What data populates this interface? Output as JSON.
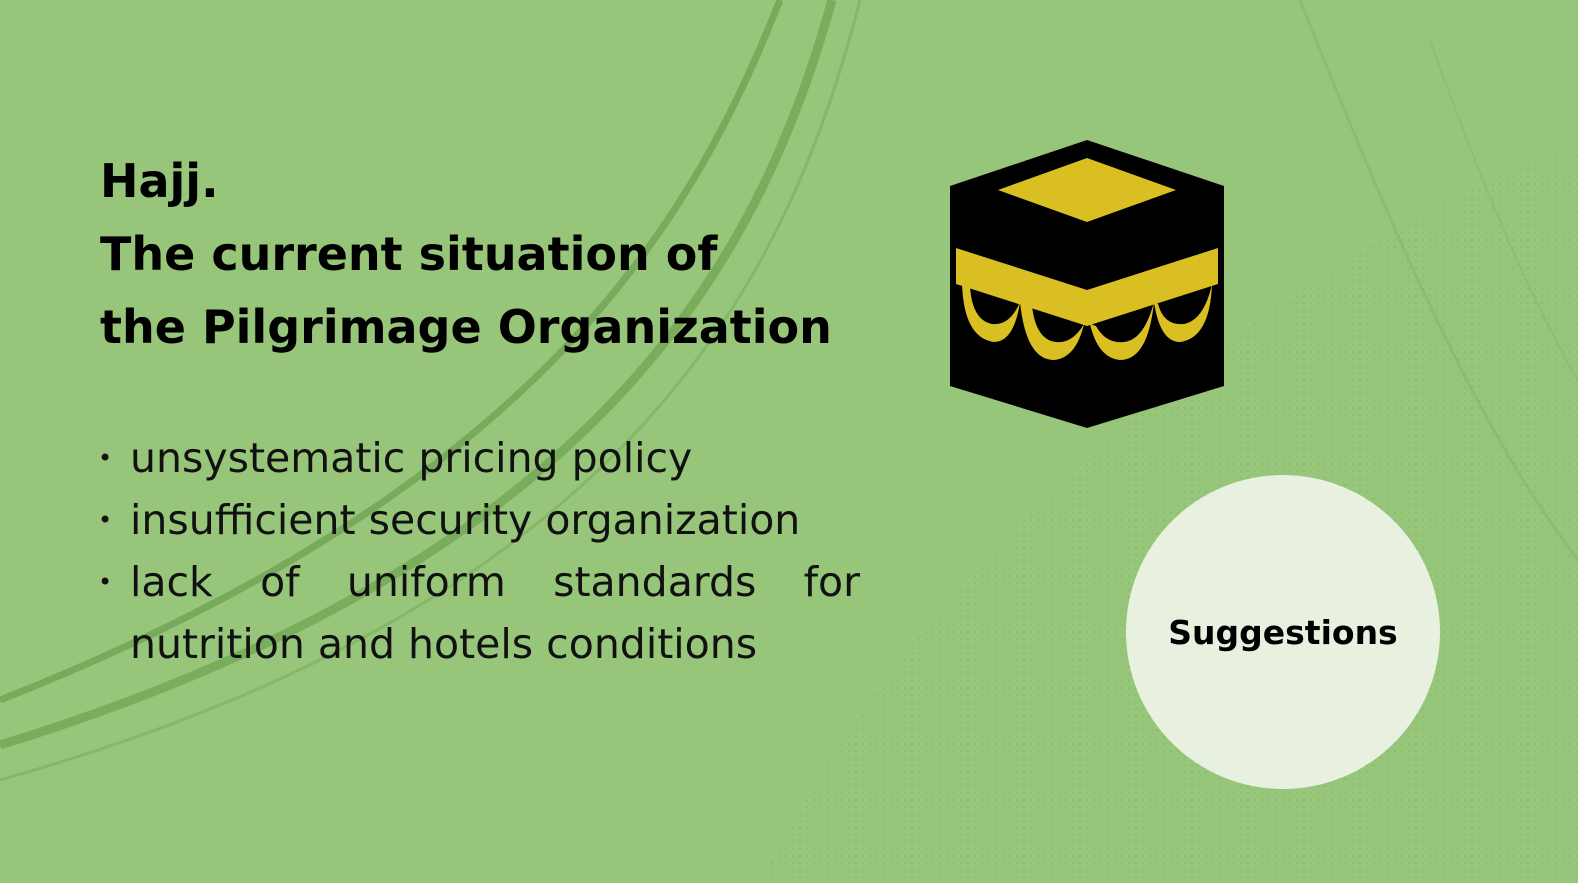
{
  "slide": {
    "title_lines": [
      "Hajj.",
      "The current situation of",
      "the Pilgrimage Organization"
    ],
    "bullets": [
      "unsystematic pricing policy",
      "insufficient security organization",
      "lack of uniform standards for nutrition and hotels conditions"
    ],
    "bullet_marker": "•",
    "suggestions_label": "Suggestions",
    "icon": "kaaba-icon"
  },
  "colors": {
    "background": "#97c67a",
    "kaaba_body": "#000000",
    "kaaba_gold": "#d9bf22",
    "circle": "#e8f1e0",
    "text": "#000000"
  }
}
